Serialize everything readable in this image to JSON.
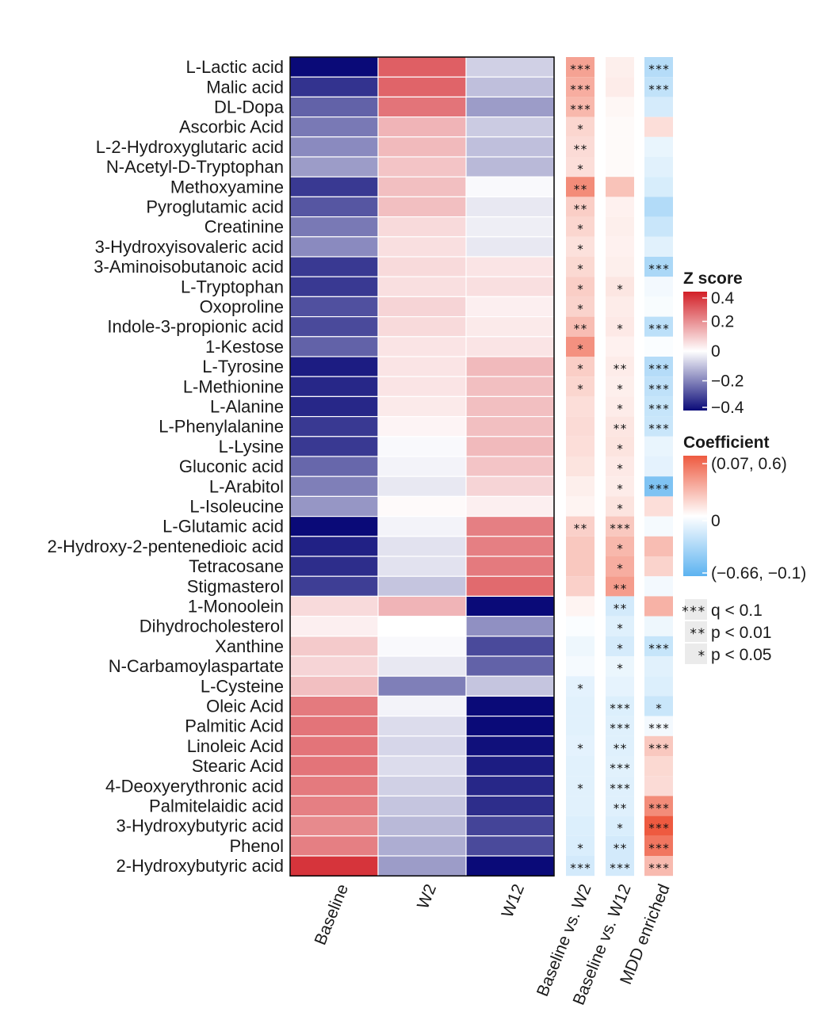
{
  "chart_data": {
    "type": "heatmap",
    "rows": [
      "L-Lactic acid",
      "Malic acid",
      "DL-Dopa",
      "Ascorbic Acid",
      "L-2-Hydroxyglutaric acid",
      "N-Acetyl-D-Tryptophan",
      "Methoxyamine",
      "Pyroglutamic acid",
      "Creatinine",
      "3-Hydroxyisovaleric acid",
      "3-Aminoisobutanoic acid",
      "L-Tryptophan",
      "Oxoproline",
      "Indole-3-propionic acid",
      "1-Kestose",
      "L-Tyrosine",
      "L-Methionine",
      "L-Alanine",
      "L-Phenylalanine",
      "L-Lysine",
      "Gluconic acid",
      "L-Arabitol",
      "L-Isoleucine",
      "L-Glutamic acid",
      "2-Hydroxy-2-pentenedioic acid",
      "Tetracosane",
      "Stigmasterol",
      "1-Monoolein",
      "Dihydrocholesterol",
      "Xanthine",
      "N-Carbamoylaspartate",
      "L-Cysteine",
      "Oleic Acid",
      "Palmitic Acid",
      "Linoleic Acid",
      "Stearic Acid",
      "4-Deoxyerythronic acid",
      "Palmitelaidic acid",
      "3-Hydroxybutyric acid",
      "Phenol",
      "2-Hydroxybutyric acid"
    ],
    "zscore_columns": [
      "Baseline",
      "W2",
      "W12"
    ],
    "zscore_values": [
      [
        -0.42,
        0.3,
        -0.08
      ],
      [
        -0.35,
        0.29,
        -0.11
      ],
      [
        -0.27,
        0.26,
        -0.17
      ],
      [
        -0.23,
        0.14,
        -0.09
      ],
      [
        -0.2,
        0.13,
        -0.11
      ],
      [
        -0.17,
        0.11,
        -0.12
      ],
      [
        -0.34,
        0.12,
        -0.01
      ],
      [
        -0.29,
        0.12,
        -0.04
      ],
      [
        -0.23,
        0.07,
        -0.03
      ],
      [
        -0.2,
        0.06,
        -0.04
      ],
      [
        -0.34,
        0.07,
        0.05
      ],
      [
        -0.34,
        0.06,
        0.06
      ],
      [
        -0.3,
        0.08,
        0.03
      ],
      [
        -0.31,
        0.07,
        0.04
      ],
      [
        -0.27,
        0.05,
        0.05
      ],
      [
        -0.39,
        0.05,
        0.13
      ],
      [
        -0.37,
        0.05,
        0.12
      ],
      [
        -0.37,
        0.04,
        0.12
      ],
      [
        -0.34,
        0.02,
        0.12
      ],
      [
        -0.34,
        -0.01,
        0.13
      ],
      [
        -0.26,
        -0.02,
        0.11
      ],
      [
        -0.22,
        -0.04,
        0.08
      ],
      [
        -0.18,
        0.01,
        0.03
      ],
      [
        -0.42,
        -0.02,
        0.24
      ],
      [
        -0.38,
        -0.05,
        0.24
      ],
      [
        -0.36,
        -0.05,
        0.25
      ],
      [
        -0.33,
        -0.1,
        0.28
      ],
      [
        0.07,
        0.14,
        -0.42
      ],
      [
        0.03,
        0.0,
        -0.19
      ],
      [
        0.1,
        -0.01,
        -0.31
      ],
      [
        0.08,
        -0.04,
        -0.27
      ],
      [
        0.12,
        -0.22,
        -0.1
      ],
      [
        0.25,
        -0.02,
        -0.42
      ],
      [
        0.26,
        -0.06,
        -0.42
      ],
      [
        0.26,
        -0.07,
        -0.41
      ],
      [
        0.26,
        -0.06,
        -0.39
      ],
      [
        0.25,
        -0.08,
        -0.37
      ],
      [
        0.24,
        -0.1,
        -0.36
      ],
      [
        0.22,
        -0.12,
        -0.32
      ],
      [
        0.24,
        -0.14,
        -0.31
      ],
      [
        0.38,
        -0.17,
        -0.42
      ]
    ],
    "coef_columns": [
      "Baseline vs. W2",
      "Baseline vs. W12",
      "MDD enriched"
    ],
    "coef_values": [
      [
        0.34,
        0.06,
        -0.3
      ],
      [
        0.3,
        0.07,
        -0.25
      ],
      [
        0.26,
        0.03,
        -0.17
      ],
      [
        0.15,
        0.02,
        0.12
      ],
      [
        0.13,
        0.02,
        -0.09
      ],
      [
        0.12,
        0.02,
        -0.12
      ],
      [
        0.42,
        0.22,
        -0.16
      ],
      [
        0.18,
        0.05,
        -0.31
      ],
      [
        0.15,
        0.06,
        -0.22
      ],
      [
        0.11,
        0.05,
        -0.12
      ],
      [
        0.14,
        0.06,
        -0.34
      ],
      [
        0.18,
        0.09,
        -0.05
      ],
      [
        0.16,
        0.07,
        -0.03
      ],
      [
        0.24,
        0.08,
        -0.27
      ],
      [
        0.4,
        0.05,
        -0.02
      ],
      [
        0.18,
        0.07,
        -0.3
      ],
      [
        0.15,
        0.06,
        -0.26
      ],
      [
        0.12,
        0.07,
        -0.23
      ],
      [
        0.13,
        0.09,
        -0.22
      ],
      [
        0.12,
        0.1,
        -0.09
      ],
      [
        0.1,
        0.08,
        -0.11
      ],
      [
        0.06,
        0.07,
        -0.52
      ],
      [
        0.04,
        0.1,
        0.12
      ],
      [
        0.17,
        0.2,
        -0.04
      ],
      [
        0.2,
        0.26,
        0.24
      ],
      [
        0.2,
        0.3,
        0.16
      ],
      [
        0.17,
        0.36,
        -0.05
      ],
      [
        0.04,
        -0.18,
        0.28
      ],
      [
        -0.02,
        -0.13,
        -0.07
      ],
      [
        -0.07,
        -0.17,
        -0.23
      ],
      [
        -0.04,
        -0.08,
        -0.12
      ],
      [
        -0.11,
        -0.1,
        -0.14
      ],
      [
        -0.12,
        -0.14,
        -0.22
      ],
      [
        -0.12,
        -0.13,
        -0.05
      ],
      [
        -0.11,
        -0.13,
        0.2
      ],
      [
        -0.12,
        -0.12,
        0.14
      ],
      [
        -0.12,
        -0.13,
        0.13
      ],
      [
        -0.12,
        -0.13,
        0.42
      ],
      [
        -0.14,
        -0.15,
        0.6
      ],
      [
        -0.15,
        -0.18,
        0.5
      ],
      [
        -0.18,
        -0.18,
        0.25
      ]
    ],
    "significance": [
      [
        "***",
        "",
        "***"
      ],
      [
        "***",
        "",
        "***"
      ],
      [
        "***",
        "",
        ""
      ],
      [
        "*",
        "",
        ""
      ],
      [
        "**",
        "",
        ""
      ],
      [
        "*",
        "",
        ""
      ],
      [
        "**",
        "",
        ""
      ],
      [
        "**",
        "",
        ""
      ],
      [
        "*",
        "",
        ""
      ],
      [
        "*",
        "",
        ""
      ],
      [
        "*",
        "",
        "***"
      ],
      [
        "*",
        "*",
        ""
      ],
      [
        "*",
        "",
        ""
      ],
      [
        "**",
        "*",
        "***"
      ],
      [
        "*",
        "",
        ""
      ],
      [
        "*",
        "**",
        "***"
      ],
      [
        "*",
        "*",
        "***"
      ],
      [
        "",
        "*",
        "***"
      ],
      [
        "",
        "**",
        "***"
      ],
      [
        "",
        "*",
        ""
      ],
      [
        "",
        "*",
        ""
      ],
      [
        "",
        "*",
        "***"
      ],
      [
        "",
        "*",
        ""
      ],
      [
        "**",
        "***",
        ""
      ],
      [
        "",
        "*",
        ""
      ],
      [
        "",
        "*",
        ""
      ],
      [
        "",
        "**",
        ""
      ],
      [
        "",
        "**",
        ""
      ],
      [
        "",
        "*",
        ""
      ],
      [
        "",
        "*",
        "***"
      ],
      [
        "",
        "*",
        ""
      ],
      [
        "*",
        "",
        ""
      ],
      [
        "",
        "***",
        "*"
      ],
      [
        "",
        "***",
        "***"
      ],
      [
        "*",
        "**",
        "***"
      ],
      [
        "",
        "***",
        ""
      ],
      [
        "*",
        "***",
        ""
      ],
      [
        "",
        "**",
        "***"
      ],
      [
        "",
        "*",
        "***"
      ],
      [
        "*",
        "**",
        "***"
      ],
      [
        "***",
        "***",
        "***"
      ]
    ],
    "zscore_legend": {
      "title": "Z score",
      "ticks": [
        "0.4",
        "0.2",
        "0",
        "−0.2",
        "−0.4"
      ],
      "tick_values": [
        0.4,
        0.2,
        0,
        -0.2,
        -0.4
      ],
      "colors": {
        "high": "#d21f26",
        "mid": "#ffffff",
        "low": "#0a0a78"
      }
    },
    "coef_legend": {
      "title": "Coefficient",
      "ticks": [
        "(0.07, 0.6)",
        "0",
        "(−0.66, −0.1)"
      ],
      "tick_values": [
        0.6,
        0,
        -0.66
      ],
      "colors": {
        "high": "#ee5a40",
        "mid": "#ffffff",
        "low": "#5cb3f0"
      }
    },
    "sig_legend": [
      {
        "mark": "***",
        "label": "q < 0.1"
      },
      {
        "mark": "**",
        "label": "p < 0.01"
      },
      {
        "mark": "*",
        "label": "p < 0.05"
      }
    ]
  }
}
